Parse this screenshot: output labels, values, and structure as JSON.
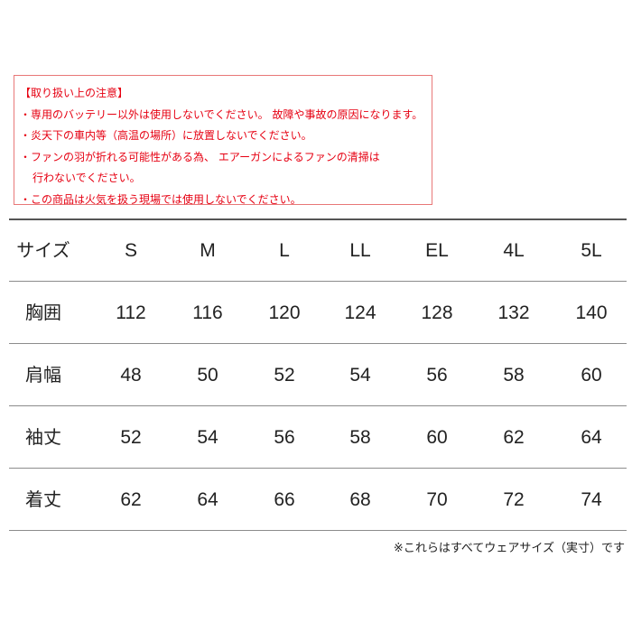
{
  "notice": {
    "title": "【取り扱い上の注意】",
    "lines": [
      "・専用のバッテリー以外は使用しないでください。 故障や事故の原因になります。",
      "・炎天下の車内等（高温の場所）に放置しないでください。",
      "・ファンの羽が折れる可能性がある為、 エアーガンによるファンの清掃は",
      "行わないでください。",
      "・この商品は火気を扱う現場では使用しないでください。"
    ],
    "color": "#e60012"
  },
  "table": {
    "header": {
      "label": "サイズ",
      "sizes": [
        "S",
        "M",
        "L",
        "LL",
        "EL",
        "4L",
        "5L"
      ]
    },
    "rows": [
      {
        "label": "胸囲",
        "values": [
          "112",
          "116",
          "120",
          "124",
          "128",
          "132",
          "140"
        ]
      },
      {
        "label": "肩幅",
        "values": [
          "48",
          "50",
          "52",
          "54",
          "56",
          "58",
          "60"
        ]
      },
      {
        "label": "袖丈",
        "values": [
          "52",
          "54",
          "56",
          "58",
          "60",
          "62",
          "64"
        ]
      },
      {
        "label": "着丈",
        "values": [
          "62",
          "64",
          "66",
          "68",
          "70",
          "72",
          "74"
        ]
      }
    ]
  },
  "footnote": "※これらはすべてウェアサイズ（実寸）です"
}
